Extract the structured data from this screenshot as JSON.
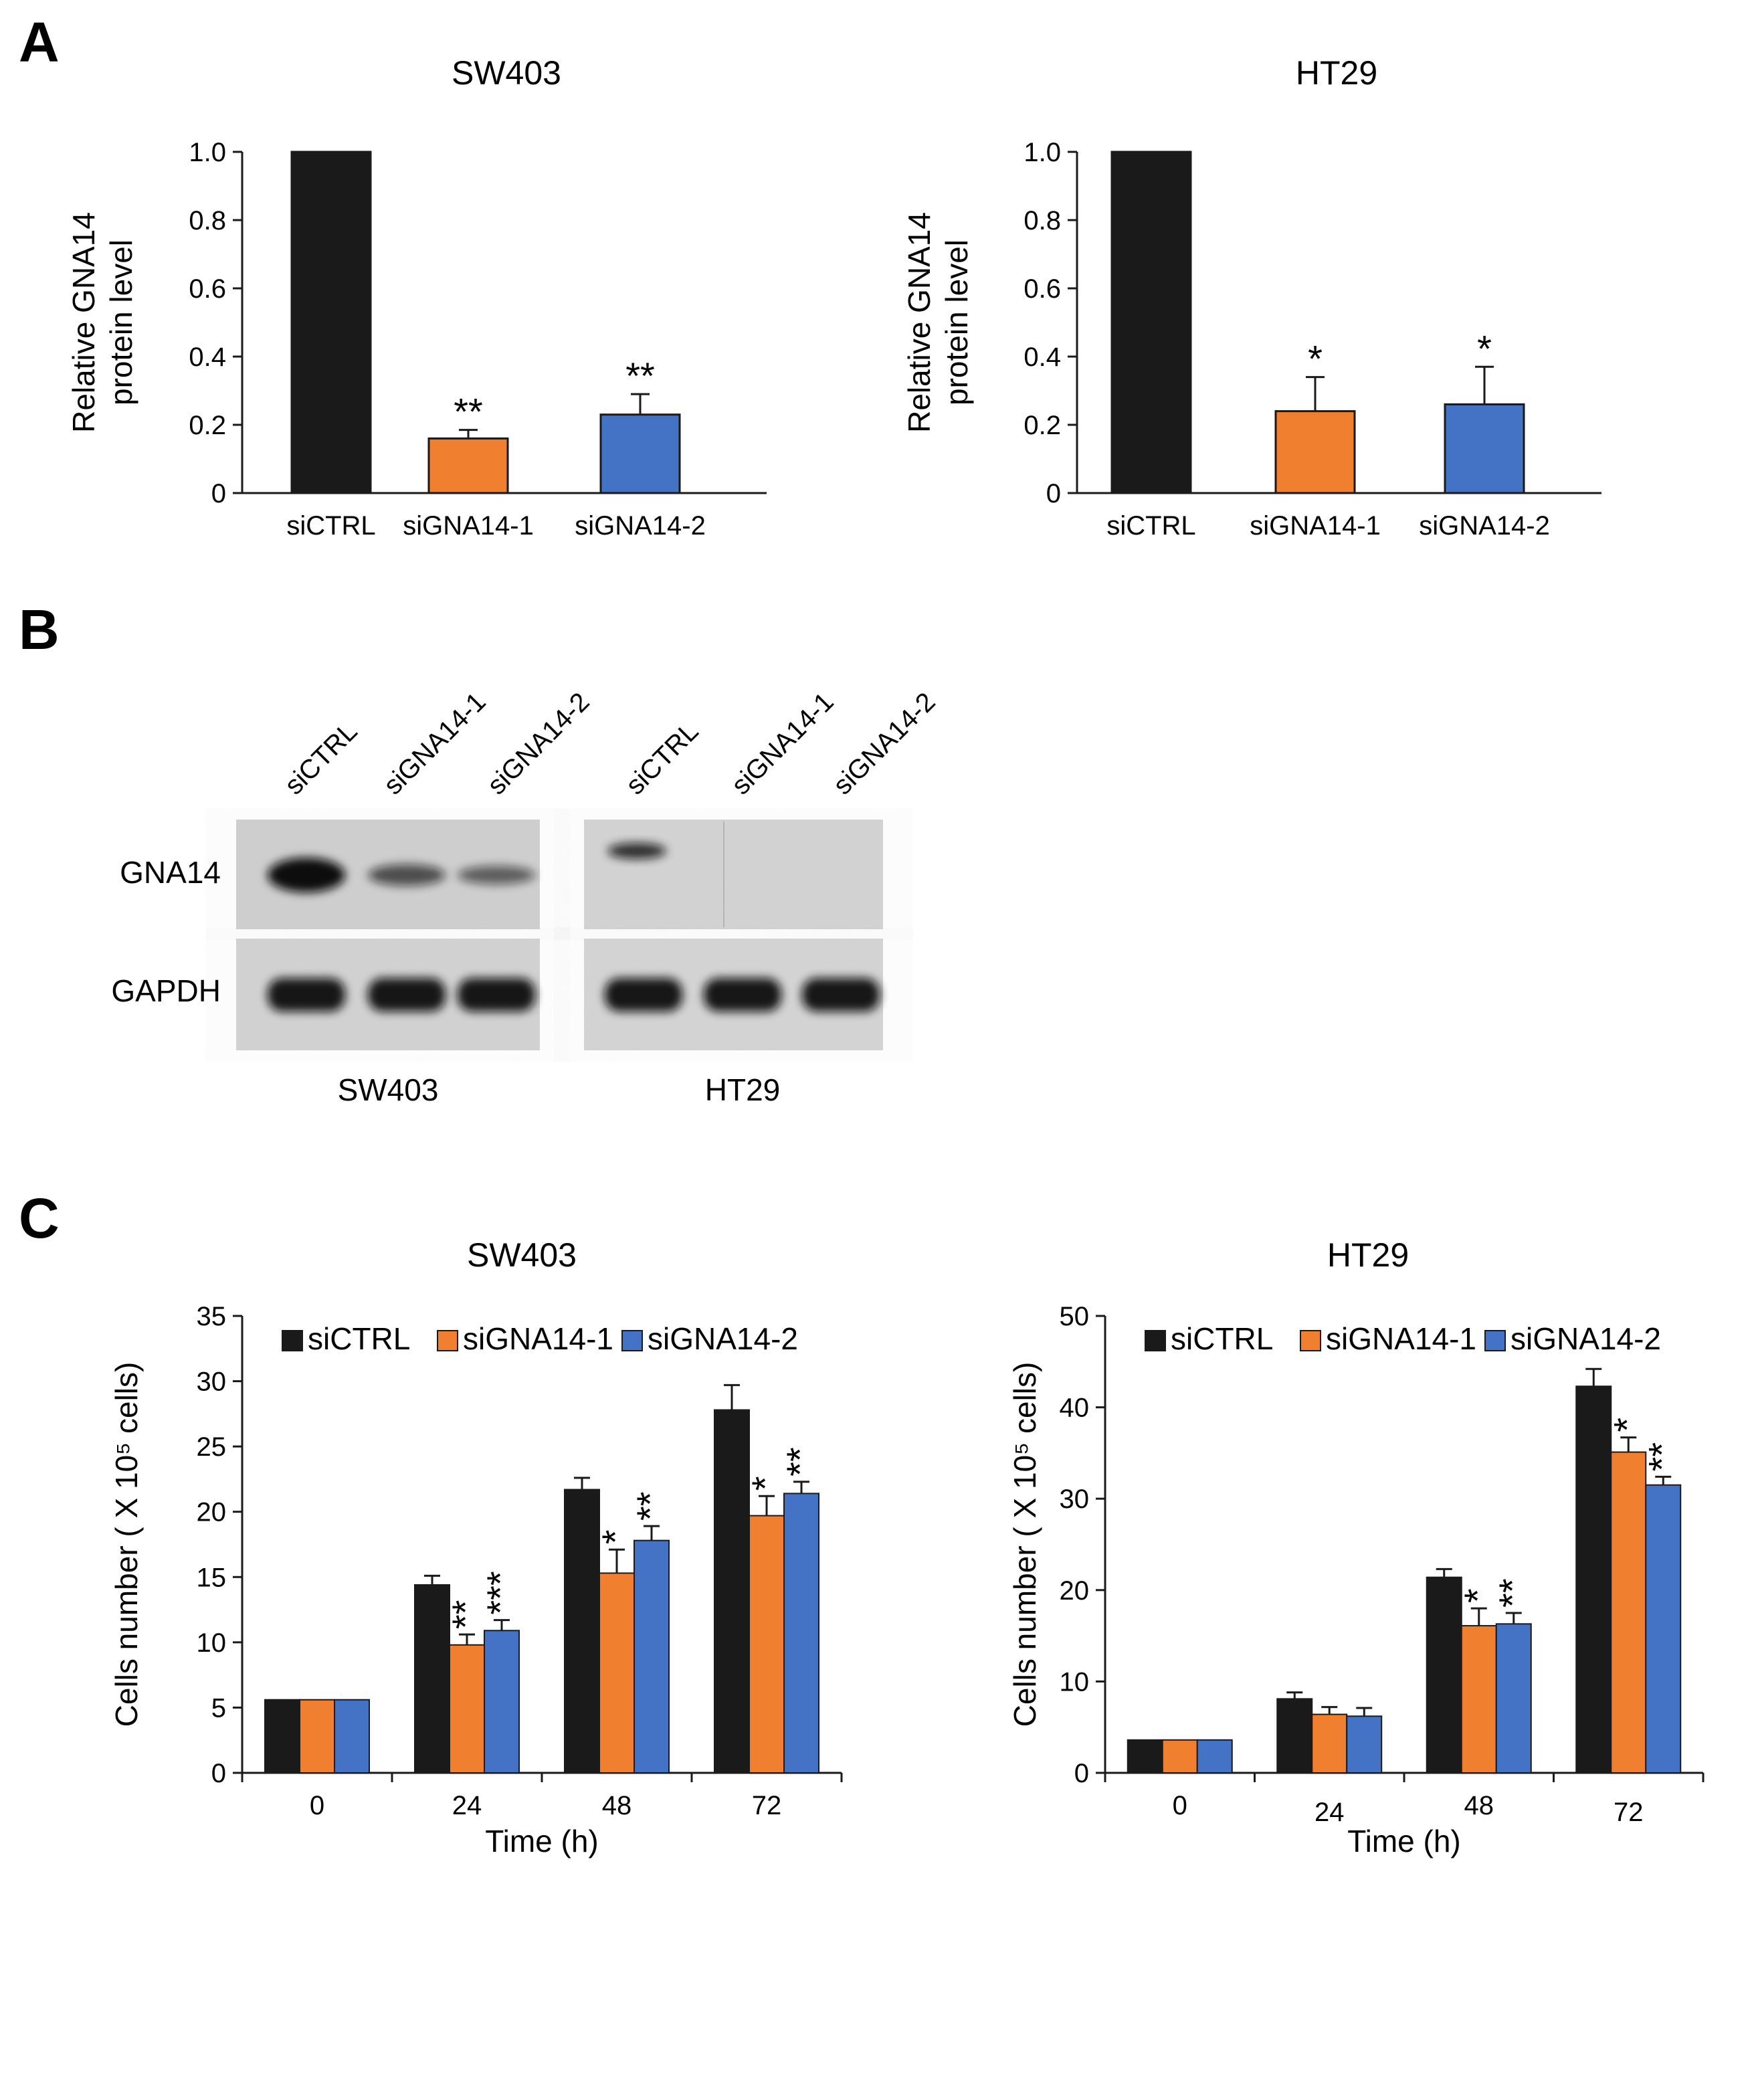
{
  "colors": {
    "ctrl": "#1a1a1a",
    "si1": "#f07f2f",
    "si2": "#4472c4",
    "axis": "#1a1a1a"
  },
  "panels": {
    "a": "A",
    "b": "B",
    "c": "C"
  },
  "chart_data": [
    {
      "id": "A-SW403",
      "type": "bar",
      "title": "SW403",
      "ylabel": "Relative GNA14 protein level",
      "xlabel": "",
      "categories": [
        "siCTRL",
        "siGNA14-1",
        "siGNA14-2"
      ],
      "values": [
        1.0,
        0.16,
        0.23
      ],
      "errors": [
        0,
        0.025,
        0.06
      ],
      "significance": [
        "",
        "**",
        "**"
      ],
      "ylim": [
        0,
        1.0
      ],
      "yticks": [
        "0",
        "0.2",
        "0.4",
        "0.6",
        "0.8",
        "1.0"
      ]
    },
    {
      "id": "A-HT29",
      "type": "bar",
      "title": "HT29",
      "ylabel": "Relative GNA14 protein level",
      "xlabel": "",
      "categories": [
        "siCTRL",
        "siGNA14-1",
        "siGNA14-2"
      ],
      "values": [
        1.0,
        0.24,
        0.26
      ],
      "errors": [
        0,
        0.1,
        0.11
      ],
      "significance": [
        "",
        "*",
        "*"
      ],
      "ylim": [
        0,
        1.0
      ],
      "yticks": [
        "0",
        "0.2",
        "0.4",
        "0.6",
        "0.8",
        "1.0"
      ]
    },
    {
      "id": "C-SW403",
      "type": "bar",
      "title": "SW403",
      "ylabel": "Cells number ( X 10⁵ cells)",
      "xlabel": "Time (h)",
      "categories": [
        "0",
        "24",
        "48",
        "72"
      ],
      "legend": [
        "siCTRL",
        "siGNA14-1",
        "siGNA14-2"
      ],
      "series": [
        {
          "name": "siCTRL",
          "values": [
            5.6,
            14.4,
            21.7,
            27.8
          ],
          "errors": [
            0,
            0.7,
            0.9,
            1.9
          ],
          "significance": [
            "",
            "",
            "",
            ""
          ]
        },
        {
          "name": "siGNA14-1",
          "values": [
            5.6,
            9.8,
            15.3,
            19.7
          ],
          "errors": [
            0,
            0.8,
            1.8,
            1.5
          ],
          "significance": [
            "",
            "**",
            "*",
            "*"
          ]
        },
        {
          "name": "siGNA14-2",
          "values": [
            5.6,
            10.9,
            17.8,
            21.4
          ],
          "errors": [
            0,
            0.8,
            1.1,
            0.9
          ],
          "significance": [
            "",
            "***",
            "**",
            "**"
          ]
        }
      ],
      "ylim": [
        0,
        35
      ],
      "yticks": [
        "0",
        "5",
        "10",
        "15",
        "20",
        "25",
        "30",
        "35"
      ]
    },
    {
      "id": "C-HT29",
      "type": "bar",
      "title": "HT29",
      "ylabel": "Cells number ( X 10⁵ cells)",
      "xlabel": "Time (h)",
      "categories": [
        "0",
        "24",
        "48",
        "72"
      ],
      "legend": [
        "siCTRL",
        "siGNA14-1",
        "siGNA14-2"
      ],
      "series": [
        {
          "name": "siCTRL",
          "values": [
            3.6,
            8.1,
            21.4,
            42.3
          ],
          "errors": [
            0,
            0.7,
            0.9,
            1.9
          ],
          "significance": [
            "",
            "",
            "",
            ""
          ]
        },
        {
          "name": "siGNA14-1",
          "values": [
            3.6,
            6.4,
            16.1,
            35.1
          ],
          "errors": [
            0,
            0.8,
            1.9,
            1.6
          ],
          "significance": [
            "",
            "",
            "*",
            "*"
          ]
        },
        {
          "name": "siGNA14-2",
          "values": [
            3.6,
            6.2,
            16.3,
            31.5
          ],
          "errors": [
            0,
            0.9,
            1.2,
            0.9
          ],
          "significance": [
            "",
            "",
            "**",
            "**"
          ]
        }
      ],
      "ylim": [
        0,
        50
      ],
      "yticks": [
        "0",
        "10",
        "20",
        "30",
        "40",
        "50"
      ]
    }
  ],
  "blot": {
    "lanes": [
      "siCTRL",
      "siGNA14-1",
      "siGNA14-2"
    ],
    "rows": [
      "GNA14",
      "GAPDH"
    ],
    "cell_lines": [
      "SW403",
      "HT29"
    ],
    "gna14_band_intensity": {
      "SW403": [
        1.0,
        0.55,
        0.45
      ],
      "HT29": [
        0.75,
        0.0,
        0.0
      ]
    },
    "gapdh_band_intensity": {
      "SW403": [
        1.0,
        1.0,
        1.0
      ],
      "HT29": [
        1.0,
        1.0,
        1.0
      ]
    }
  }
}
